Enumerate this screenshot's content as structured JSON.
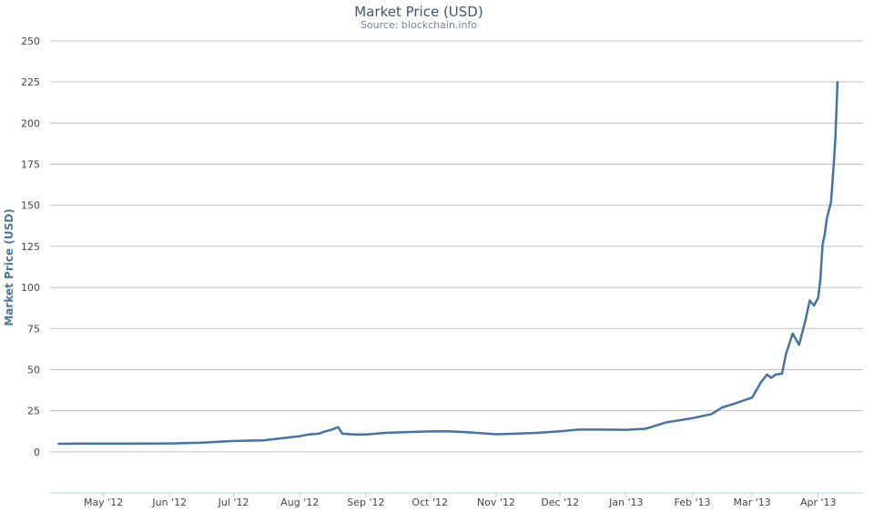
{
  "chart_data": {
    "type": "line",
    "title": "Market Price (USD)",
    "subtitle": "Source: blockchain.info",
    "ylabel": "Market Price (USD)",
    "xlabel": "",
    "ylim": [
      -25,
      250
    ],
    "yticks": [
      0,
      25,
      50,
      75,
      100,
      125,
      150,
      175,
      200,
      225,
      250
    ],
    "xlim": [
      "2012-04-06",
      "2013-04-22"
    ],
    "xticks": [
      {
        "label": "May '12",
        "date": "2012-05-01"
      },
      {
        "label": "Jun '12",
        "date": "2012-06-01"
      },
      {
        "label": "Jul '12",
        "date": "2012-07-01"
      },
      {
        "label": "Aug '12",
        "date": "2012-08-01"
      },
      {
        "label": "Sep '12",
        "date": "2012-09-01"
      },
      {
        "label": "Oct '12",
        "date": "2012-10-01"
      },
      {
        "label": "Nov '12",
        "date": "2012-11-01"
      },
      {
        "label": "Dec '12",
        "date": "2012-12-01"
      },
      {
        "label": "Jan '13",
        "date": "2013-01-01"
      },
      {
        "label": "Feb '13",
        "date": "2013-02-01"
      },
      {
        "label": "Mar '13",
        "date": "2013-03-01"
      },
      {
        "label": "Apr '13",
        "date": "2013-04-01"
      }
    ],
    "grid": true,
    "line_color": "#4572a7",
    "series": [
      {
        "x": [
          "2012-04-10",
          "2012-04-20",
          "2012-05-01",
          "2012-05-15",
          "2012-06-01",
          "2012-06-15",
          "2012-07-01",
          "2012-07-15",
          "2012-07-25",
          "2012-08-01",
          "2012-08-05",
          "2012-08-10",
          "2012-08-12",
          "2012-08-16",
          "2012-08-19",
          "2012-08-21",
          "2012-08-27",
          "2012-09-01",
          "2012-09-10",
          "2012-09-20",
          "2012-10-01",
          "2012-10-10",
          "2012-10-20",
          "2012-11-01",
          "2012-11-10",
          "2012-11-20",
          "2012-12-01",
          "2012-12-10",
          "2012-12-20",
          "2013-01-01",
          "2013-01-10",
          "2013-01-20",
          "2013-01-25",
          "2013-02-01",
          "2013-02-10",
          "2013-02-15",
          "2013-02-20",
          "2013-03-01",
          "2013-03-05",
          "2013-03-08",
          "2013-03-10",
          "2013-03-12",
          "2013-03-15",
          "2013-03-17",
          "2013-03-20",
          "2013-03-23",
          "2013-03-26",
          "2013-03-28",
          "2013-03-30",
          "2013-04-01",
          "2013-04-02",
          "2013-04-03",
          "2013-04-04",
          "2013-04-05",
          "2013-04-07",
          "2013-04-08",
          "2013-04-09",
          "2013-04-10"
        ],
        "y": [
          4.9,
          5.0,
          5.0,
          5.0,
          5.1,
          5.5,
          6.6,
          7.0,
          8.5,
          9.5,
          10.5,
          11.0,
          12.0,
          13.5,
          15.0,
          11.0,
          10.5,
          10.5,
          11.5,
          12.0,
          12.4,
          12.5,
          11.8,
          10.7,
          11.0,
          11.5,
          12.5,
          13.5,
          13.5,
          13.4,
          14.0,
          18.0,
          19.0,
          20.5,
          23.0,
          27.0,
          29.0,
          33.0,
          42.0,
          47.0,
          45.0,
          47.0,
          47.5,
          60.0,
          72.0,
          65.0,
          80.0,
          92.0,
          89.0,
          94.0,
          105.0,
          126.0,
          132.0,
          142.0,
          152.0,
          170.0,
          190.0,
          225.0
        ]
      }
    ]
  }
}
